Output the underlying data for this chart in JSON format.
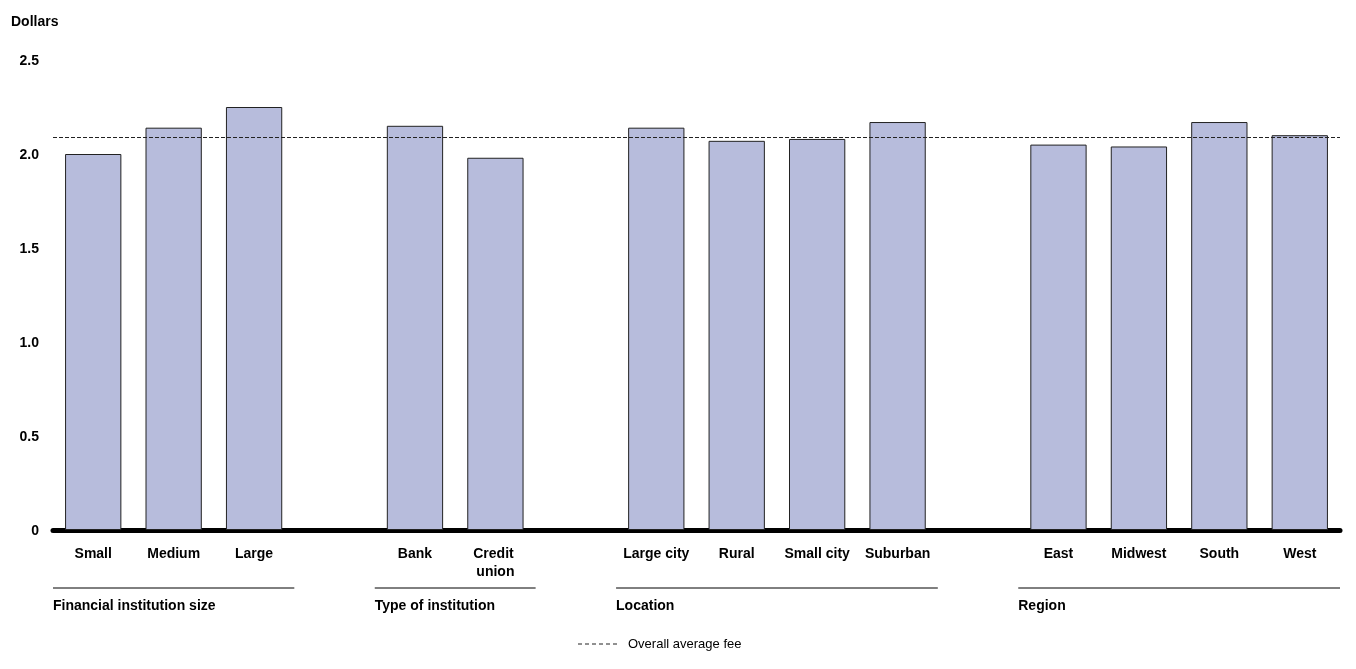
{
  "chart_data": {
    "type": "bar",
    "ylabel": "Dollars",
    "categories": [
      "Small",
      "Medium",
      "Large",
      null,
      "Bank",
      "Credit union",
      null,
      "Large city",
      "Rural",
      "Small city",
      "Suburban",
      null,
      "East",
      "Midwest",
      "South",
      "West"
    ],
    "values": [
      2.0,
      2.14,
      2.25,
      null,
      2.15,
      1.98,
      null,
      2.14,
      2.07,
      2.08,
      2.17,
      null,
      2.05,
      2.04,
      2.17,
      2.1
    ],
    "color": "#b7bcdc",
    "ylim": [
      0,
      2.5
    ],
    "yticks": [
      0,
      {
        "value": 0.5,
        "label": "0.5"
      },
      {
        "value": 1,
        "label": "1.0"
      },
      {
        "value": 1.5,
        "label": "1.5"
      },
      {
        "value": 2,
        "label": "2.0"
      },
      {
        "value": 2.5,
        "label": "2.5"
      }
    ],
    "grid": false,
    "ref_lines": [
      {
        "axis": "y",
        "value": 2.09,
        "label": "Overall average fee",
        "line_style": "dashed"
      }
    ],
    "annotations": [
      "Financial institution size",
      "Type of institution",
      "Location",
      "Region"
    ]
  }
}
